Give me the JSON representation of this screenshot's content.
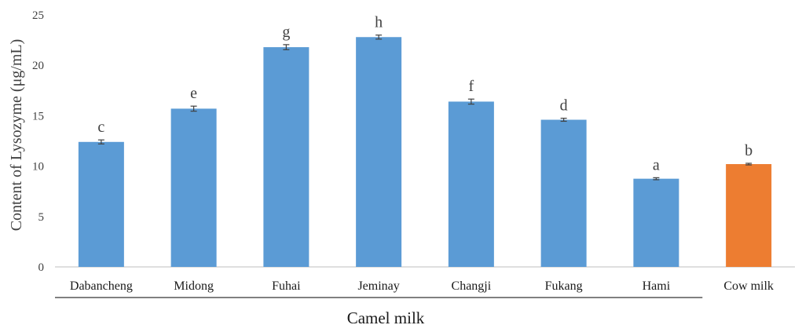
{
  "chart_data": {
    "type": "bar",
    "categories": [
      "Dabancheng",
      "Midong",
      "Fuhai",
      "Jeminay",
      "Changji",
      "Fukang",
      "Hami",
      "Cow milk"
    ],
    "values": [
      12.4,
      15.7,
      21.8,
      22.8,
      16.4,
      14.6,
      8.75,
      10.2
    ],
    "errors": [
      0.2,
      0.25,
      0.25,
      0.2,
      0.25,
      0.15,
      0.1,
      0.08
    ],
    "significance_letters": [
      "c",
      "e",
      "g",
      "h",
      "f",
      "d",
      "a",
      "b"
    ],
    "bar_colors": [
      "#5b9bd5",
      "#5b9bd5",
      "#5b9bd5",
      "#5b9bd5",
      "#5b9bd5",
      "#5b9bd5",
      "#5b9bd5",
      "#ed7d31"
    ],
    "ylabel": "Content of Lysozyme (μg/mL)",
    "group_label": "Camel milk",
    "ylim": [
      0,
      25
    ],
    "yticks": [
      "0",
      "5",
      "10",
      "15",
      "20",
      "25"
    ],
    "grid": false,
    "legend": "none"
  }
}
